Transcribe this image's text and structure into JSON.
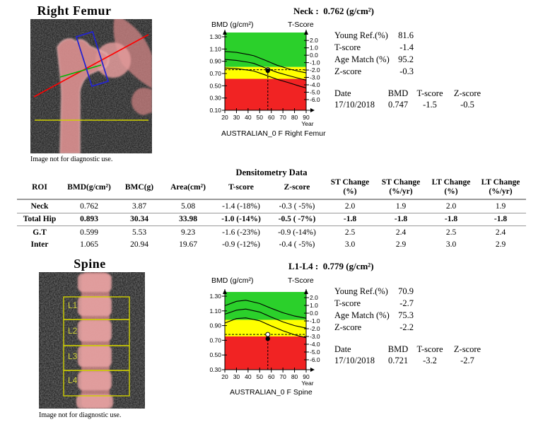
{
  "femur": {
    "title": "Right Femur",
    "image_caption": "Image not for diagnostic use.",
    "stats": {
      "young_ref_label": "Young Ref.(%)",
      "young_ref": "81.6",
      "t_score_label": "T-score",
      "t_score": "-1.4",
      "age_match_label": "Age Match (%)",
      "age_match": "95.2",
      "z_score_label": "Z-score",
      "z_score": "-0.3"
    },
    "history": {
      "headers": [
        "Date",
        "BMD",
        "T-score",
        "Z-score"
      ],
      "row": [
        "17/10/2018",
        "0.747",
        "-1.5",
        "-0.5"
      ]
    }
  },
  "spine": {
    "title": "Spine",
    "image_caption": "Image not for diagnostic use.",
    "roi_labels": [
      "L1",
      "L2",
      "L3",
      "L4"
    ],
    "stats": {
      "young_ref_label": "Young Ref.(%)",
      "young_ref": "70.9",
      "t_score_label": "T-score",
      "t_score": "-2.7",
      "age_match_label": "Age Match (%)",
      "age_match": "75.3",
      "z_score_label": "Z-score",
      "z_score": "-2.2"
    },
    "history": {
      "headers": [
        "Date",
        "BMD",
        "T-score",
        "Z-score"
      ],
      "row": [
        "17/10/2018",
        "0.721",
        "-3.2",
        "-2.7"
      ]
    }
  },
  "table": {
    "title": "Densitometry Data",
    "headers": [
      [
        "ROI",
        ""
      ],
      [
        "BMD(g/cm²)",
        ""
      ],
      [
        "BMC(g)",
        ""
      ],
      [
        "Area(cm²)",
        ""
      ],
      [
        "T-score",
        ""
      ],
      [
        "Z-score",
        ""
      ],
      [
        "ST Change",
        "(%)"
      ],
      [
        "ST Change",
        "(%/yr)"
      ],
      [
        "LT Change",
        "(%)"
      ],
      [
        "LT Change",
        "(%/yr)"
      ]
    ],
    "rows": [
      {
        "bold": false,
        "rule": true,
        "cells": [
          "Neck",
          "0.762",
          "3.87",
          "5.08",
          "-1.4 (-18%)",
          "-0.3 ( -5%)",
          "2.0",
          "1.9",
          "2.0",
          "1.9"
        ]
      },
      {
        "bold": true,
        "rule": true,
        "cells": [
          "Total Hip",
          "0.893",
          "30.34",
          "33.98",
          "-1.0 (-14%)",
          "-0.5 ( -7%)",
          "-1.8",
          "-1.8",
          "-1.8",
          "-1.8"
        ]
      },
      {
        "bold": false,
        "rule": false,
        "cells": [
          "G.T",
          "0.599",
          "5.53",
          "9.23",
          "-1.6 (-23%)",
          "-0.9 (-14%)",
          "2.5",
          "2.4",
          "2.5",
          "2.4"
        ]
      },
      {
        "bold": false,
        "rule": false,
        "cells": [
          "Inter",
          "1.065",
          "20.94",
          "19.67",
          "-0.9 (-12%)",
          "-0.4 ( -5%)",
          "3.0",
          "2.9",
          "3.0",
          "2.9"
        ]
      }
    ]
  },
  "colors": {
    "zone_green": "#2bd02b",
    "zone_yellow": "#ffff00",
    "zone_red": "#f12323",
    "annotation_red": "#ff0000",
    "annotation_green": "#00b400",
    "annotation_blue": "#2424cf",
    "annotation_yellow": "#d0d000",
    "bone_pink": "#e09494"
  },
  "chart_data": [
    {
      "type": "line",
      "roi": "Neck",
      "title": "Neck :  0.762 (g/cm²)",
      "caption": "AUSTRALIAN_0 F Right Femur",
      "xlabel": "Year",
      "ylabel_left": "BMD (g/cm²)",
      "ylabel_right": "T-Score",
      "xlim": [
        20,
        90
      ],
      "ylim": [
        0.1,
        1.3
      ],
      "x_ticks": [
        20,
        30,
        40,
        50,
        60,
        70,
        80,
        90
      ],
      "y_ticks_left": [
        1.3,
        1.1,
        0.9,
        0.7,
        0.5,
        0.3,
        0.1
      ],
      "y_ticks_right": [
        2.0,
        1.0,
        0.0,
        -1.0,
        -2.0,
        -3.0,
        -4.0,
        -5.0,
        -6.0
      ],
      "t_axis_frac": [
        0.05,
        0.855
      ],
      "zones": {
        "yellow": [
          0.613,
          0.807
        ]
      },
      "reference_curves": [
        {
          "name": "upper",
          "points": [
            [
              20,
              1.06
            ],
            [
              30,
              1.045
            ],
            [
              40,
              1.01
            ],
            [
              45,
              0.99
            ],
            [
              55,
              0.915
            ],
            [
              65,
              0.835
            ],
            [
              75,
              0.775
            ],
            [
              85,
              0.73
            ],
            [
              90,
              0.71
            ]
          ]
        },
        {
          "name": "middle",
          "points": [
            [
              20,
              0.93
            ],
            [
              30,
              0.915
            ],
            [
              40,
              0.885
            ],
            [
              45,
              0.865
            ],
            [
              55,
              0.79
            ],
            [
              65,
              0.72
            ],
            [
              75,
              0.665
            ],
            [
              85,
              0.615
            ],
            [
              90,
              0.59
            ]
          ]
        },
        {
          "name": "lower",
          "points": [
            [
              20,
              0.79
            ],
            [
              30,
              0.78
            ],
            [
              40,
              0.755
            ],
            [
              45,
              0.74
            ],
            [
              55,
              0.675
            ],
            [
              65,
              0.605
            ],
            [
              75,
              0.55
            ],
            [
              85,
              0.49
            ],
            [
              90,
              0.465
            ]
          ]
        }
      ],
      "markers": {
        "age": 57,
        "current_bmd": 0.762,
        "dated_bmd": 0.747
      }
    },
    {
      "type": "line",
      "roi": "L1-L4",
      "title": "L1-L4 :  0.779 (g/cm²)",
      "caption": "AUSTRALIAN_0 F Spine",
      "xlabel": "Year",
      "ylabel_left": "BMD (g/cm²)",
      "ylabel_right": "T-Score",
      "xlim": [
        20,
        90
      ],
      "ylim": [
        0.3,
        1.3
      ],
      "x_ticks": [
        20,
        30,
        40,
        50,
        60,
        70,
        80,
        90
      ],
      "y_ticks_left": [
        1.3,
        1.1,
        0.9,
        0.7,
        0.5,
        0.3
      ],
      "y_ticks_right": [
        2.0,
        1.0,
        0.0,
        -1.0,
        -2.0,
        -3.0,
        -4.0,
        -5.0,
        -6.0
      ],
      "t_axis_frac": [
        0.02,
        0.865
      ],
      "zones": {
        "yellow": [
          0.752,
          0.978
        ]
      },
      "reference_curves": [
        {
          "name": "upper",
          "points": [
            [
              20,
              1.17
            ],
            [
              30,
              1.23
            ],
            [
              38,
              1.245
            ],
            [
              50,
              1.2
            ],
            [
              60,
              1.135
            ],
            [
              70,
              1.075
            ],
            [
              80,
              1.03
            ],
            [
              90,
              1.0
            ]
          ]
        },
        {
          "name": "middle",
          "points": [
            [
              20,
              1.055
            ],
            [
              30,
              1.11
            ],
            [
              38,
              1.125
            ],
            [
              50,
              1.085
            ],
            [
              60,
              1.015
            ],
            [
              70,
              0.95
            ],
            [
              80,
              0.9
            ],
            [
              90,
              0.865
            ]
          ]
        },
        {
          "name": "lower",
          "points": [
            [
              20,
              0.935
            ],
            [
              30,
              0.995
            ],
            [
              38,
              1.005
            ],
            [
              50,
              0.965
            ],
            [
              60,
              0.895
            ],
            [
              70,
              0.83
            ],
            [
              80,
              0.775
            ],
            [
              90,
              0.735
            ]
          ]
        }
      ],
      "markers": {
        "age": 57,
        "current_bmd": 0.779,
        "dated_bmd": 0.721
      }
    }
  ]
}
